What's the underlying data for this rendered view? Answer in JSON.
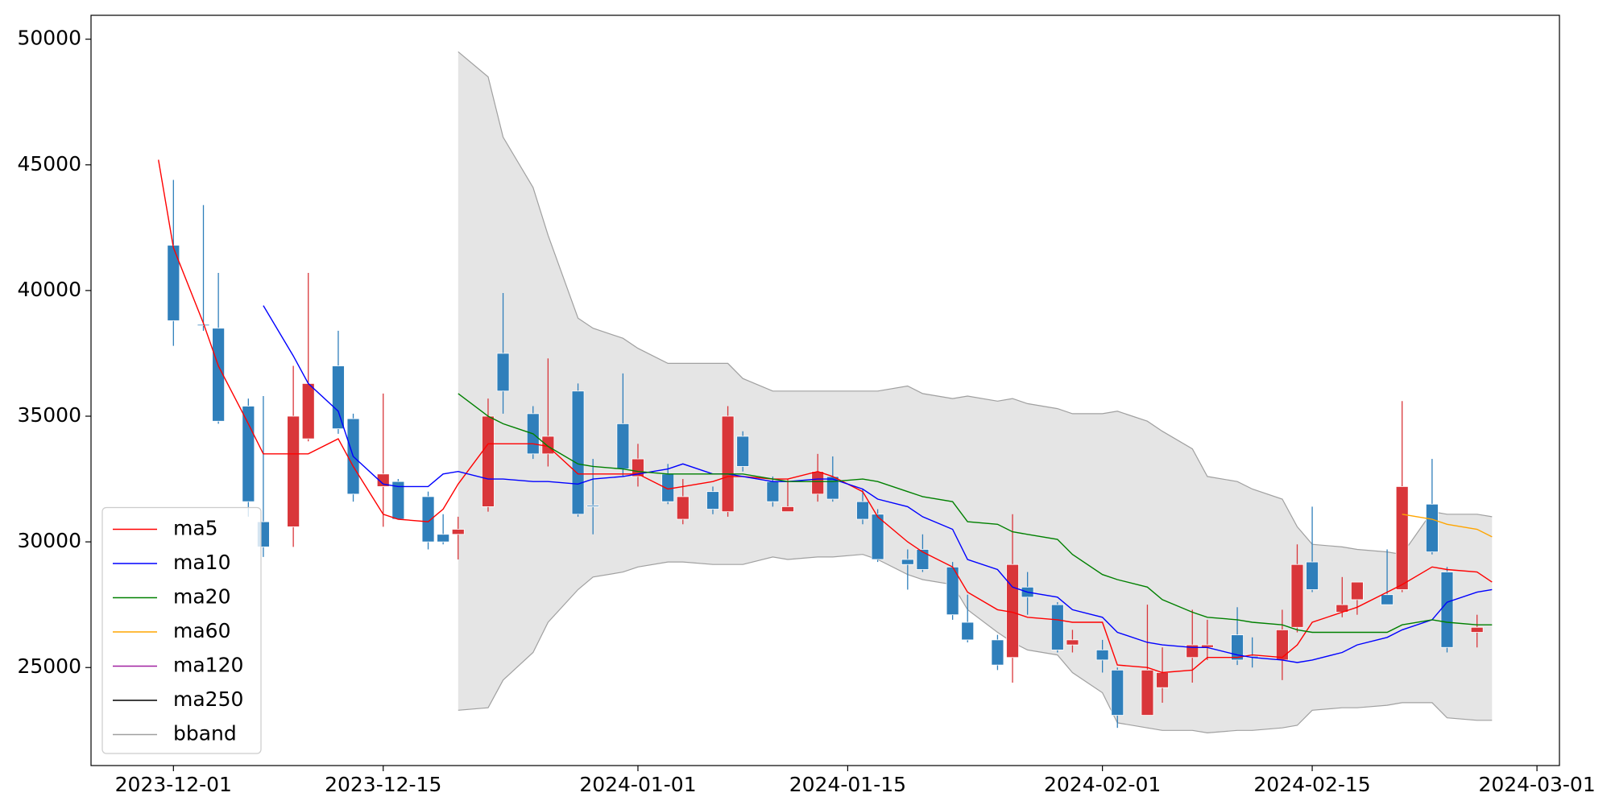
{
  "chart_data": {
    "type": "candlestick",
    "x": [
      "2023-11-30",
      "2023-12-01",
      "2023-12-03",
      "2023-12-04",
      "2023-12-06",
      "2023-12-07",
      "2023-12-09",
      "2023-12-10",
      "2023-12-12",
      "2023-12-13",
      "2023-12-15",
      "2023-12-16",
      "2023-12-18",
      "2023-12-19",
      "2023-12-20",
      "2023-12-22",
      "2023-12-23",
      "2023-12-25",
      "2023-12-26",
      "2023-12-28",
      "2023-12-29",
      "2023-12-31",
      "2024-01-01",
      "2024-01-03",
      "2024-01-04",
      "2024-01-06",
      "2024-01-07",
      "2024-01-08",
      "2024-01-10",
      "2024-01-11",
      "2024-01-13",
      "2024-01-14",
      "2024-01-16",
      "2024-01-17",
      "2024-01-19",
      "2024-01-20",
      "2024-01-22",
      "2024-01-23",
      "2024-01-25",
      "2024-01-26",
      "2024-01-27",
      "2024-01-29",
      "2024-01-30",
      "2024-02-01",
      "2024-02-02",
      "2024-02-04",
      "2024-02-05",
      "2024-02-07",
      "2024-02-08",
      "2024-02-10",
      "2024-02-11",
      "2024-02-13",
      "2024-02-14",
      "2024-02-15",
      "2024-02-17",
      "2024-02-18",
      "2024-02-20",
      "2024-02-21",
      "2024-02-23",
      "2024-02-24",
      "2024-02-26",
      "2024-02-27"
    ],
    "xlim": [
      "2023-11-25T12:00",
      "2024-03-02T12:00"
    ],
    "xticks": [
      "2023-12-01",
      "2023-12-15",
      "2024-01-01",
      "2024-01-15",
      "2024-02-01",
      "2024-02-15",
      "2024-03-01"
    ],
    "ylim": [
      21100,
      50950
    ],
    "yticks": [
      25000,
      30000,
      35000,
      40000,
      45000,
      50000
    ],
    "up_color": "#d9363a",
    "down_color": "#2f7fbb",
    "candles": {
      "open": [
        null,
        41800,
        38650,
        38500,
        35400,
        30800,
        30600,
        34100,
        37000,
        34900,
        32200,
        32400,
        31800,
        30300,
        30300,
        31400,
        37500,
        35100,
        33500,
        36000,
        31450,
        34700,
        32600,
        32700,
        30900,
        32000,
        31200,
        34200,
        32400,
        31200,
        31900,
        32600,
        31600,
        31100,
        29300,
        29700,
        29000,
        26800,
        26100,
        25400,
        28200,
        27500,
        25900,
        25700,
        24900,
        23100,
        24200,
        25400,
        25800,
        26300,
        25450,
        25300,
        26600,
        29200,
        27200,
        27700,
        27900,
        28100,
        31500,
        28800,
        26400,
        null
      ],
      "high": [
        null,
        44400,
        43400,
        40700,
        35700,
        35800,
        37000,
        40700,
        38400,
        35100,
        35900,
        32500,
        32000,
        31100,
        31000,
        35700,
        39900,
        35400,
        37300,
        36300,
        33300,
        36700,
        33900,
        33100,
        32500,
        32200,
        35400,
        34400,
        32600,
        32500,
        33500,
        33400,
        32100,
        31300,
        29700,
        30300,
        29200,
        27900,
        26300,
        31100,
        28800,
        27600,
        26500,
        26100,
        25000,
        27500,
        25800,
        27300,
        26900,
        27400,
        26200,
        27300,
        29900,
        31400,
        28600,
        28400,
        29700,
        35600,
        33300,
        29000,
        27100,
        null
      ],
      "low": [
        null,
        37800,
        38400,
        34700,
        31000,
        29400,
        29800,
        34000,
        34300,
        31600,
        30600,
        30900,
        29700,
        29900,
        29300,
        31200,
        35100,
        33300,
        33000,
        31000,
        30300,
        32600,
        32200,
        31500,
        30700,
        31100,
        31000,
        32800,
        31400,
        31200,
        31600,
        31600,
        30700,
        29200,
        28100,
        28800,
        26900,
        26000,
        24900,
        24400,
        27100,
        25600,
        25600,
        24800,
        22600,
        23100,
        23600,
        24400,
        25300,
        25100,
        25000,
        24500,
        26400,
        28000,
        27000,
        27100,
        27500,
        28000,
        29500,
        25600,
        25800,
        null
      ],
      "close": [
        null,
        38800,
        38600,
        34800,
        31600,
        29800,
        35000,
        36300,
        34500,
        31900,
        32700,
        30900,
        30000,
        30000,
        30500,
        35000,
        36000,
        33500,
        34200,
        31100,
        31400,
        32900,
        33300,
        31600,
        31800,
        31300,
        35000,
        33000,
        31600,
        31400,
        32800,
        31700,
        30900,
        29300,
        29100,
        28900,
        27100,
        26100,
        25100,
        29100,
        27800,
        25700,
        26100,
        25300,
        23100,
        24900,
        24800,
        25900,
        25900,
        25300,
        25400,
        26500,
        29100,
        28100,
        27500,
        28400,
        27500,
        32200,
        29600,
        25800,
        26600,
        null
      ]
    },
    "series": [
      {
        "name": "ma5",
        "color": "#ff0000",
        "values": [
          45200,
          41700,
          38700,
          37000,
          34700,
          33500,
          33500,
          33500,
          34100,
          33000,
          31100,
          30900,
          30800,
          31300,
          32300,
          33900,
          33900,
          33900,
          33800,
          32700,
          32700,
          32700,
          32700,
          32100,
          32200,
          32400,
          32600,
          32600,
          32500,
          32500,
          32800,
          32600,
          32000,
          31000,
          30000,
          29600,
          29000,
          28000,
          27300,
          27200,
          27000,
          26900,
          26800,
          26800,
          25100,
          25000,
          24800,
          24900,
          25400,
          25400,
          25500,
          25400,
          25900,
          26800,
          27200,
          27400,
          28000,
          28300,
          29000,
          28900,
          28800,
          28400
        ]
      },
      {
        "name": "ma10",
        "color": "#0000ff",
        "values": [
          null,
          null,
          null,
          null,
          null,
          39400,
          37400,
          36300,
          35200,
          33400,
          32300,
          32200,
          32200,
          32700,
          32800,
          32500,
          32500,
          32400,
          32400,
          32300,
          32500,
          32600,
          32700,
          32900,
          33100,
          32700,
          32700,
          32600,
          32400,
          32400,
          32500,
          32500,
          32100,
          31700,
          31400,
          31000,
          30500,
          29300,
          28900,
          28200,
          28000,
          27800,
          27300,
          27000,
          26400,
          26000,
          25900,
          25800,
          25800,
          25500,
          25400,
          25300,
          25200,
          25300,
          25600,
          25900,
          26200,
          26500,
          26900,
          27600,
          28000,
          28100
        ]
      },
      {
        "name": "ma20",
        "color": "#008000",
        "values": [
          null,
          null,
          null,
          null,
          null,
          null,
          null,
          null,
          null,
          null,
          null,
          null,
          null,
          null,
          35900,
          35000,
          34700,
          34300,
          33800,
          33100,
          33000,
          32900,
          32800,
          32700,
          32700,
          32700,
          32700,
          32700,
          32500,
          32400,
          32400,
          32400,
          32500,
          32400,
          32000,
          31800,
          31600,
          30800,
          30700,
          30400,
          30300,
          30100,
          29500,
          28700,
          28500,
          28200,
          27700,
          27200,
          27000,
          26900,
          26800,
          26700,
          26500,
          26400,
          26400,
          26400,
          26400,
          26700,
          26900,
          26800,
          26700,
          26700
        ]
      },
      {
        "name": "ma60",
        "color": "#ffa500",
        "values": [
          null,
          null,
          null,
          null,
          null,
          null,
          null,
          null,
          null,
          null,
          null,
          null,
          null,
          null,
          null,
          null,
          null,
          null,
          null,
          null,
          null,
          null,
          null,
          null,
          null,
          null,
          null,
          null,
          null,
          null,
          null,
          null,
          null,
          null,
          null,
          null,
          null,
          null,
          null,
          null,
          null,
          null,
          null,
          null,
          null,
          null,
          null,
          null,
          null,
          null,
          null,
          null,
          null,
          null,
          null,
          null,
          null,
          31100,
          30900,
          30700,
          30500,
          30200
        ]
      },
      {
        "name": "ma120",
        "color": "#a020a0",
        "values": [
          null,
          null,
          null,
          null,
          null,
          null,
          null,
          null,
          null,
          null,
          null,
          null,
          null,
          null,
          null,
          null,
          null,
          null,
          null,
          null,
          null,
          null,
          null,
          null,
          null,
          null,
          null,
          null,
          null,
          null,
          null,
          null,
          null,
          null,
          null,
          null,
          null,
          null,
          null,
          null,
          null,
          null,
          null,
          null,
          null,
          null,
          null,
          null,
          null,
          null,
          null,
          null,
          null,
          null,
          null,
          null,
          null,
          null,
          null,
          null,
          null,
          null
        ]
      },
      {
        "name": "ma250",
        "color": "#000000",
        "values": [
          null,
          null,
          null,
          null,
          null,
          null,
          null,
          null,
          null,
          null,
          null,
          null,
          null,
          null,
          null,
          null,
          null,
          null,
          null,
          null,
          null,
          null,
          null,
          null,
          null,
          null,
          null,
          null,
          null,
          null,
          null,
          null,
          null,
          null,
          null,
          null,
          null,
          null,
          null,
          null,
          null,
          null,
          null,
          null,
          null,
          null,
          null,
          null,
          null,
          null,
          null,
          null,
          null,
          null,
          null,
          null,
          null,
          null,
          null,
          null,
          null,
          null
        ]
      }
    ],
    "bband": {
      "name": "bband",
      "color": "#a0a0a0",
      "fill": "#e5e5e5",
      "upper": [
        null,
        null,
        null,
        null,
        null,
        null,
        null,
        null,
        null,
        null,
        null,
        null,
        null,
        null,
        49500,
        48500,
        46100,
        44100,
        42200,
        38900,
        38500,
        38100,
        37700,
        37100,
        37100,
        37100,
        37100,
        36500,
        36000,
        36000,
        36000,
        36000,
        36000,
        36000,
        36200,
        35900,
        35700,
        35800,
        35600,
        35700,
        35500,
        35300,
        35100,
        35100,
        35200,
        34800,
        34400,
        33700,
        32600,
        32400,
        32100,
        31700,
        30600,
        29900,
        29800,
        29700,
        29600,
        29500,
        31200,
        31100,
        31100,
        31000
      ],
      "lower": [
        null,
        null,
        null,
        null,
        null,
        null,
        null,
        null,
        null,
        null,
        null,
        null,
        null,
        null,
        23300,
        23400,
        24500,
        25600,
        26800,
        28100,
        28600,
        28800,
        29000,
        29200,
        29200,
        29100,
        29100,
        29100,
        29400,
        29300,
        29400,
        29400,
        29500,
        29300,
        28700,
        28500,
        28300,
        27300,
        26400,
        26000,
        25700,
        25500,
        24800,
        24000,
        22800,
        22600,
        22500,
        22500,
        22400,
        22500,
        22500,
        22600,
        22700,
        23300,
        23400,
        23400,
        23500,
        23600,
        23600,
        23000,
        22900,
        22900
      ]
    },
    "legend": "lower left"
  }
}
